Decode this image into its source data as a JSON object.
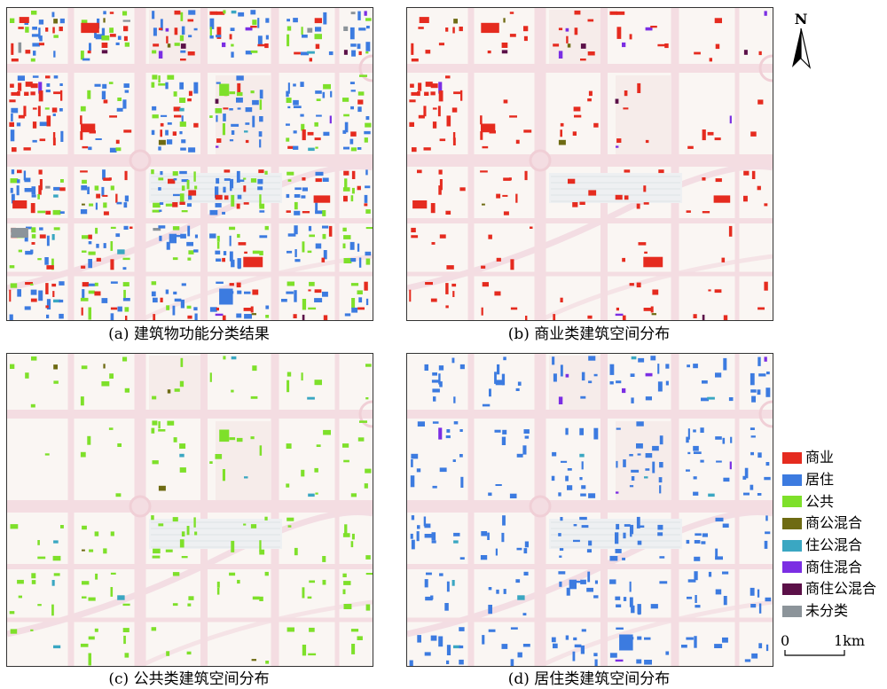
{
  "panels": [
    {
      "id": "a",
      "caption": "(a) 建筑物功能分类结果",
      "mode": "all"
    },
    {
      "id": "b",
      "caption": "(b) 商业类建筑空间分布",
      "mode": "commercial"
    },
    {
      "id": "c",
      "caption": "(c) 公共类建筑空间分布",
      "mode": "public"
    },
    {
      "id": "d",
      "caption": "(d) 居住类建筑空间分布",
      "mode": "residential"
    }
  ],
  "legend": {
    "items": [
      {
        "label": "商业",
        "color": "#e52b1f"
      },
      {
        "label": "居住",
        "color": "#3c7be0"
      },
      {
        "label": "公共",
        "color": "#7ee02a"
      },
      {
        "label": "商公混合",
        "color": "#6e6b13"
      },
      {
        "label": "住公混合",
        "color": "#3aa7c2"
      },
      {
        "label": "商住混合",
        "color": "#7b2ee3"
      },
      {
        "label": "商住公混合",
        "color": "#5b1048"
      },
      {
        "label": "未分类",
        "color": "#8c949a"
      }
    ]
  },
  "north_arrow": {
    "letter": "N",
    "icon": "north-arrow-icon"
  },
  "scale_bar": {
    "start_label": "0",
    "end_label": "1km"
  }
}
